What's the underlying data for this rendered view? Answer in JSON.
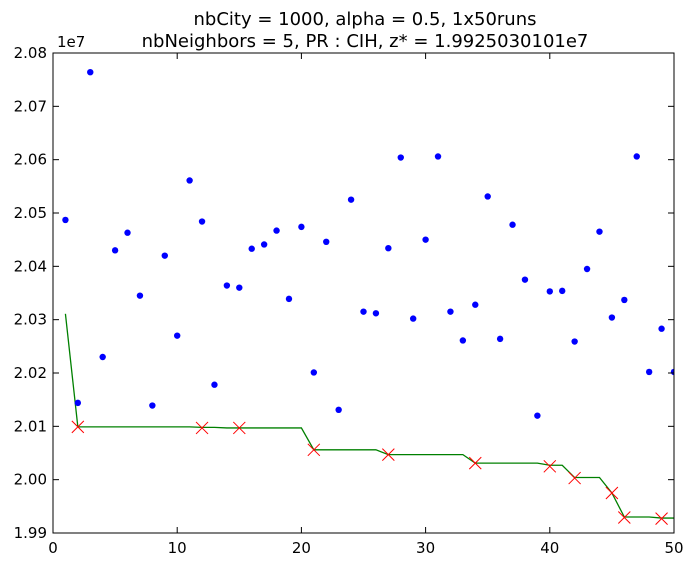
{
  "chart_data": {
    "type": "scatter",
    "title_lines": [
      "nbCity = 1000, alpha = 0.5, 1x50runs",
      "nbNeighbors = 5, PR : CIH, z* = 1.9925030101e7"
    ],
    "xlabel": "",
    "ylabel": "",
    "y_offset_label": "1e7",
    "xlim": [
      0,
      50
    ],
    "ylim": [
      19900000,
      20800000
    ],
    "x_ticks": [
      0,
      10,
      20,
      30,
      40,
      50
    ],
    "x_tick_labels": [
      "0",
      "10",
      "20",
      "30",
      "40",
      "50"
    ],
    "y_ticks": [
      19900000,
      20000000,
      20100000,
      20200000,
      20300000,
      20400000,
      20500000,
      20600000,
      20700000,
      20800000
    ],
    "y_tick_labels": [
      "1.99",
      "2.00",
      "2.01",
      "2.02",
      "2.03",
      "2.04",
      "2.05",
      "2.06",
      "2.07",
      "2.08"
    ],
    "grid": false,
    "colors": {
      "points": "#0000ff",
      "best_line": "#008000",
      "improvement_marker": "#ff0000"
    },
    "series": [
      {
        "kind": "points",
        "x": [
          1,
          2,
          3,
          4,
          5,
          6,
          7,
          8,
          9,
          10,
          11,
          12,
          13,
          14,
          15,
          16,
          17,
          18,
          19,
          20,
          21,
          22,
          23,
          24,
          25,
          26,
          27,
          28,
          29,
          30,
          31,
          32,
          33,
          34,
          35,
          36,
          37,
          38,
          39,
          40,
          41,
          42,
          43,
          44,
          45,
          46,
          47,
          48,
          49,
          50
        ],
        "y": [
          20487000,
          20144000,
          20764000,
          20230000,
          20430000,
          20463000,
          20345000,
          20139000,
          20420000,
          20270000,
          20561000,
          20484000,
          20178000,
          20364000,
          20360000,
          20433000,
          20441000,
          20467000,
          20339000,
          20474000,
          20201000,
          20446000,
          20131000,
          20525000,
          20315000,
          20312000,
          20434000,
          20604000,
          20302000,
          20450000,
          20606000,
          20315000,
          20261000,
          20328000,
          20531000,
          20264000,
          20478000,
          20375000,
          20120000,
          20353000,
          20354000,
          20259000,
          20395000,
          20465000,
          20304000,
          20337000,
          20606000,
          20202000,
          20283000,
          20202000
        ]
      },
      {
        "kind": "best_line",
        "x": [
          1,
          2,
          3,
          4,
          5,
          6,
          7,
          8,
          9,
          10,
          11,
          12,
          13,
          14,
          15,
          16,
          17,
          18,
          19,
          20,
          21,
          22,
          23,
          24,
          25,
          26,
          27,
          28,
          29,
          30,
          31,
          32,
          33,
          34,
          35,
          36,
          37,
          38,
          39,
          40,
          41,
          42,
          43,
          44,
          45,
          46,
          47,
          48,
          49,
          50
        ],
        "y": [
          20311000,
          20099000,
          20099000,
          20099000,
          20099000,
          20099000,
          20099000,
          20099000,
          20099000,
          20099000,
          20099000,
          20098000,
          20098000,
          20097000,
          20097000,
          20097000,
          20097000,
          20097000,
          20097000,
          20097000,
          20056000,
          20056000,
          20056000,
          20056000,
          20056000,
          20056000,
          20047000,
          20047000,
          20047000,
          20047000,
          20047000,
          20047000,
          20047000,
          20031000,
          20031000,
          20031000,
          20031000,
          20031000,
          20031000,
          20027000,
          20027000,
          20004000,
          20004000,
          20004000,
          19975000,
          19930000,
          19930000,
          19930000,
          19928000,
          19928000
        ]
      },
      {
        "kind": "improvements",
        "x": [
          2,
          12,
          15,
          21,
          27,
          34,
          40,
          42,
          45,
          46,
          49
        ],
        "y": [
          20099000,
          20097000,
          20097000,
          20056000,
          20047000,
          20031000,
          20025000,
          20003000,
          19975000,
          19929000,
          19927000
        ]
      }
    ]
  }
}
